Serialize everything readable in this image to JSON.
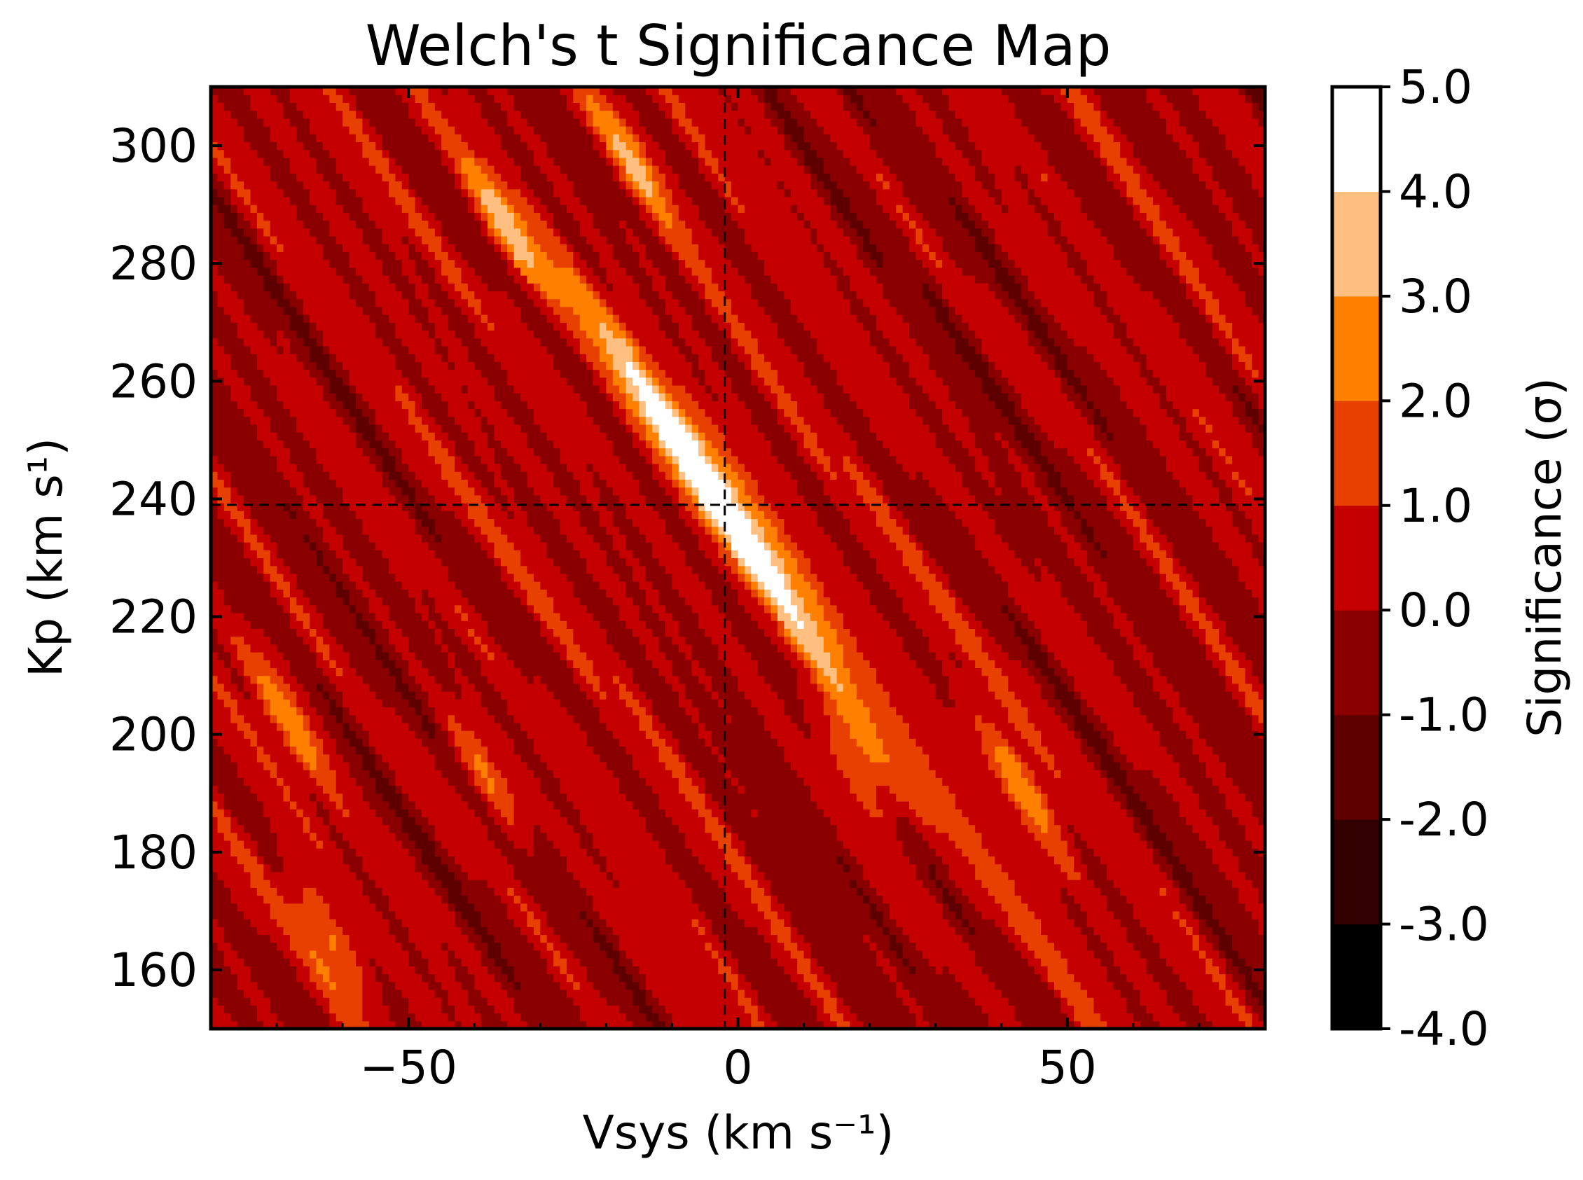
{
  "chart_data": {
    "type": "heatmap",
    "title": "Welch's t Significance Map",
    "xlabel": "Vsys (km s⁻¹)",
    "ylabel": "Kp (km s¹)",
    "xlim": [
      -80,
      80
    ],
    "ylim": [
      150,
      310
    ],
    "x_ticks": [
      -50,
      0,
      50
    ],
    "x_tick_labels": [
      "−50",
      "0",
      "50"
    ],
    "y_ticks": [
      160,
      180,
      200,
      220,
      240,
      260,
      280,
      300
    ],
    "y_tick_labels": [
      "160",
      "180",
      "200",
      "220",
      "240",
      "260",
      "280",
      "300"
    ],
    "reference_lines": {
      "vsys": -2,
      "kp": 239
    },
    "peak": {
      "vsys": -3,
      "kp": 240,
      "significance": 4.6
    },
    "band_slope_kp_per_vsys": -1.55,
    "secondary_maxima": [
      {
        "vsys": -35,
        "kp": 285,
        "significance": 3.4
      },
      {
        "vsys": 18,
        "kp": 195,
        "significance": 3.5
      },
      {
        "vsys": 43,
        "kp": 192,
        "significance": 3.4
      },
      {
        "vsys": -38,
        "kp": 192,
        "significance": 3.2
      },
      {
        "vsys": -62,
        "kp": 165,
        "significance": 3.3
      },
      {
        "vsys": -68,
        "kp": 203,
        "significance": 3.1
      },
      {
        "vsys": -16,
        "kp": 298,
        "significance": 3.1
      }
    ],
    "grid": false,
    "colorbar": {
      "label": "Significance (σ)",
      "levels": [
        -4.0,
        -3.0,
        -2.0,
        -1.0,
        0.0,
        1.0,
        2.0,
        3.0,
        4.0,
        5.0
      ],
      "tick_labels": [
        "-4.0",
        "-3.0",
        "-2.0",
        "-1.0",
        "0.0",
        "1.0",
        "2.0",
        "3.0",
        "4.0",
        "5.0"
      ],
      "colors": [
        "#000000",
        "#330000",
        "#5e0000",
        "#8a0000",
        "#c40000",
        "#e84000",
        "#ff8000",
        "#ffbf80",
        "#ffffff"
      ]
    }
  }
}
